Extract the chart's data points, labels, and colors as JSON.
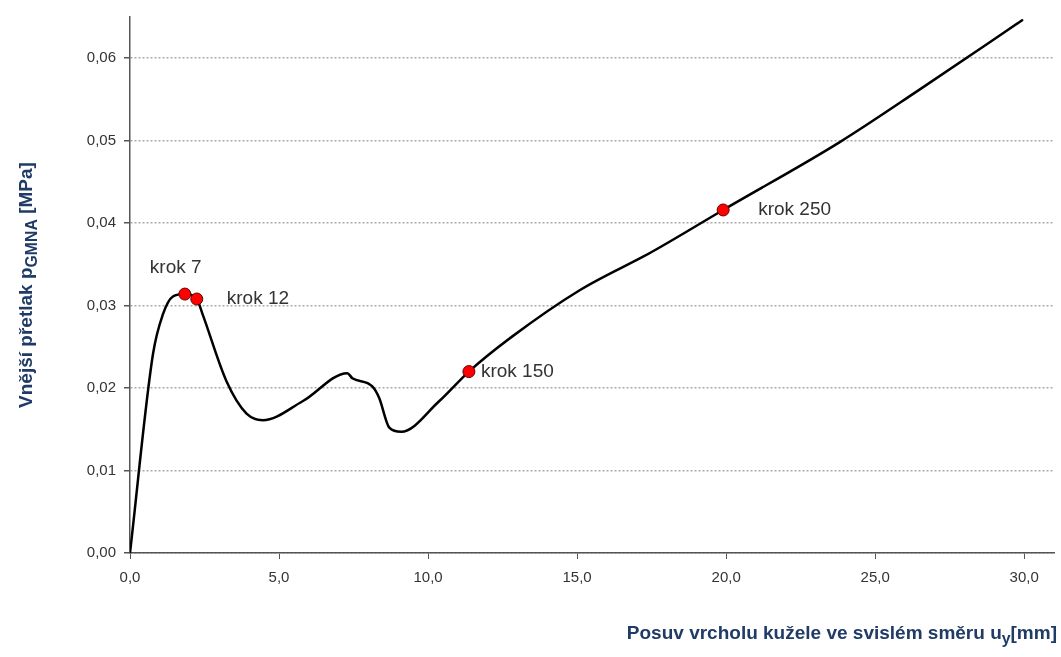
{
  "chart_data": {
    "type": "line",
    "xlabel": "Posuv vrcholu kužele ve svislém směru u$_{y}$[mm]",
    "ylabel": "Vnější přetlak p$_{GMNA}$ [MPa]",
    "xlim": [
      0,
      31
    ],
    "ylim": [
      0,
      0.065
    ],
    "xticks": [
      {
        "value": 0,
        "label": "0,0"
      },
      {
        "value": 5,
        "label": "5,0"
      },
      {
        "value": 10,
        "label": "10,0"
      },
      {
        "value": 15,
        "label": "15,0"
      },
      {
        "value": 20,
        "label": "20,0"
      },
      {
        "value": 25,
        "label": "25,0"
      },
      {
        "value": 30,
        "label": "30,0"
      }
    ],
    "yticks": [
      {
        "value": 0,
        "label": "0,00"
      },
      {
        "value": 0.01,
        "label": "0,01"
      },
      {
        "value": 0.02,
        "label": "0,02"
      },
      {
        "value": 0.03,
        "label": "0,03"
      },
      {
        "value": 0.04,
        "label": "0,04"
      },
      {
        "value": 0.05,
        "label": "0,05"
      },
      {
        "value": 0.06,
        "label": "0,06"
      }
    ],
    "grid": "y",
    "legend": false,
    "series": [
      {
        "type": "line",
        "color": "#000000",
        "marker": "none",
        "x": [
          0,
          0.77,
          1.1,
          1.44,
          1.84,
          2.24,
          2.44,
          3.24,
          3.91,
          4.45,
          5.79,
          7.29,
          7.46,
          8.13,
          8.36,
          8.7,
          9.1,
          10.37,
          11.37,
          12.84,
          15.1,
          17.5,
          19.9,
          23.8,
          26.45,
          29.93
        ],
        "values": [
          0,
          0.0241,
          0.0289,
          0.0311,
          0.0314,
          0.0308,
          0.0289,
          0.0208,
          0.0169,
          0.0161,
          0.0184,
          0.0218,
          0.0212,
          0.0202,
          0.0188,
          0.0152,
          0.0147,
          0.0184,
          0.022,
          0.0263,
          0.0319,
          0.0365,
          0.0416,
          0.0498,
          0.0561,
          0.0646
        ]
      },
      {
        "type": "scatter",
        "color": "#ff0000",
        "marker": "circle",
        "x": [
          1.84,
          2.24,
          11.37,
          19.9
        ],
        "values": [
          0.0314,
          0.0308,
          0.022,
          0.0416
        ]
      }
    ],
    "annotations": [
      {
        "text": "krok 7",
        "x": 1.84,
        "y": 0.0314
      },
      {
        "text": "krok 12",
        "x": 2.24,
        "y": 0.0308
      },
      {
        "text": "krok 150",
        "x": 11.37,
        "y": 0.022
      },
      {
        "text": "krok 250",
        "x": 19.9,
        "y": 0.0416
      }
    ]
  }
}
